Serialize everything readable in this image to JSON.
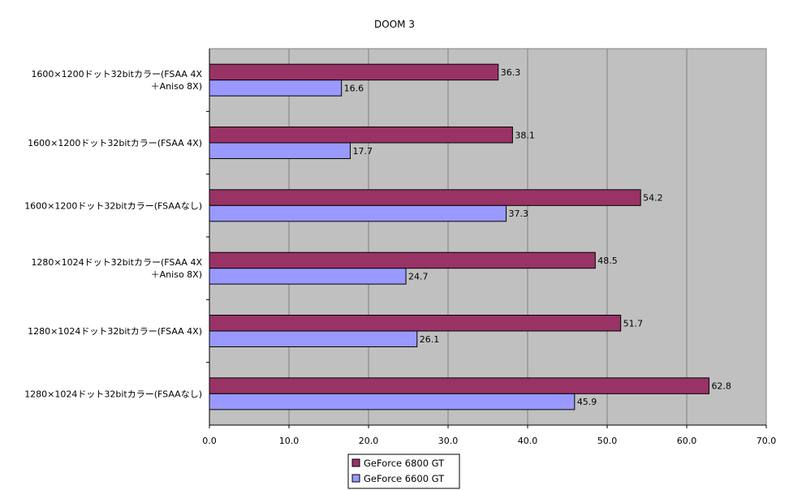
{
  "chart_data": {
    "type": "bar",
    "orientation": "horizontal",
    "title": "DOOM 3",
    "xlabel": "",
    "ylabel": "",
    "xlim": [
      0,
      70
    ],
    "x_ticks": [
      "0.0",
      "10.0",
      "20.0",
      "30.0",
      "40.0",
      "50.0",
      "60.0",
      "70.0"
    ],
    "grid": "vertical",
    "plot_background": "#c0c0c0",
    "legend_position": "bottom",
    "categories": [
      [
        "1600×1200ドット32bitカラー(FSAA 4X",
        "＋Aniso 8X)"
      ],
      [
        "1600×1200ドット32bitカラー(FSAA 4X)"
      ],
      [
        "1600×1200ドット32bitカラー(FSAAなし)"
      ],
      [
        "1280×1024ドット32bitカラー(FSAA 4X",
        "＋Aniso 8X)"
      ],
      [
        "1280×1024ドット32bitカラー(FSAA 4X)"
      ],
      [
        "1280×1024ドット32bitカラー(FSAAなし)"
      ]
    ],
    "series": [
      {
        "name": "GeForce 6800 GT",
        "color": "#993366",
        "values": [
          36.3,
          38.1,
          54.2,
          48.5,
          51.7,
          62.8
        ],
        "labels": [
          "36.3",
          "38.1",
          "54.2",
          "48.5",
          "51.7",
          "62.8"
        ]
      },
      {
        "name": "GeForce 6600 GT",
        "color": "#9999ff",
        "values": [
          16.6,
          17.7,
          37.3,
          24.7,
          26.1,
          45.9
        ],
        "labels": [
          "16.6",
          "17.7",
          "37.3",
          "24.7",
          "26.1",
          "45.9"
        ]
      }
    ]
  }
}
